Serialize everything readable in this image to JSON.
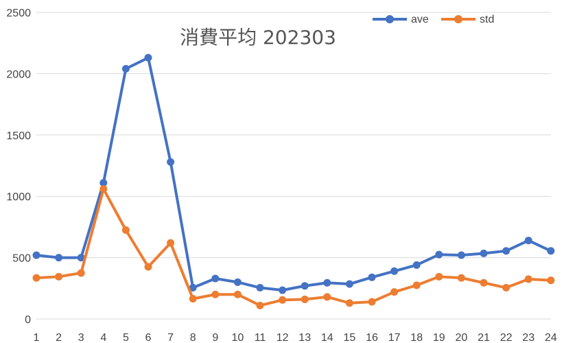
{
  "chart_data": {
    "type": "line",
    "title": "消費平均 202303",
    "xlabel": "",
    "ylabel": "",
    "categories": [
      "1",
      "2",
      "3",
      "4",
      "5",
      "6",
      "7",
      "8",
      "9",
      "10",
      "11",
      "12",
      "13",
      "14",
      "15",
      "16",
      "17",
      "18",
      "19",
      "20",
      "21",
      "22",
      "23",
      "24"
    ],
    "ylim": [
      0,
      2500
    ],
    "yticks": [
      0,
      500,
      1000,
      1500,
      2000,
      2500
    ],
    "grid": true,
    "legend_position": "top-right",
    "series": [
      {
        "name": "ave",
        "color": "#4472c4",
        "values": [
          520,
          500,
          500,
          1110,
          2040,
          2130,
          1280,
          255,
          330,
          300,
          255,
          235,
          270,
          295,
          285,
          340,
          390,
          440,
          525,
          520,
          535,
          555,
          640,
          555
        ]
      },
      {
        "name": "std",
        "color": "#ed7d31",
        "values": [
          335,
          345,
          375,
          1060,
          725,
          425,
          620,
          165,
          200,
          200,
          110,
          155,
          160,
          180,
          130,
          140,
          220,
          275,
          345,
          335,
          295,
          255,
          325,
          315
        ]
      }
    ]
  }
}
